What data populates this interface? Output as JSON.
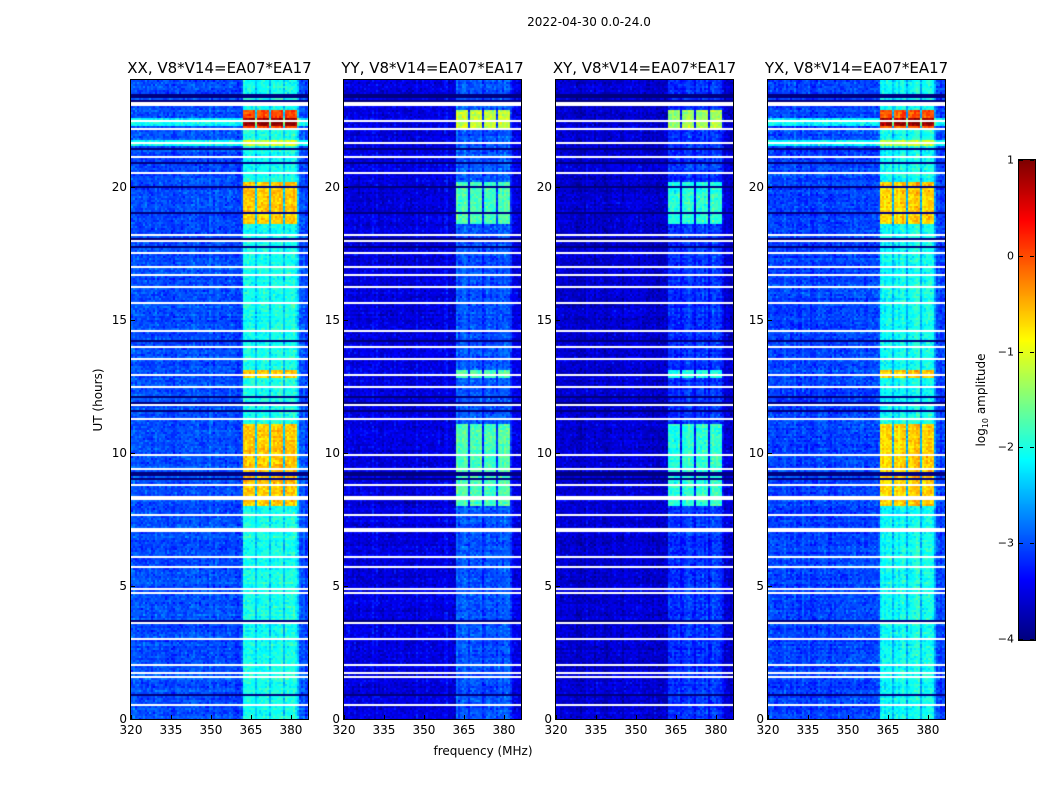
{
  "chart_data": {
    "type": "heatmap",
    "title": "2022-04-30 0.0-24.0",
    "xlabel": "frequency (MHz)",
    "ylabel": "UT (hours)",
    "xlim": [
      320,
      386.4
    ],
    "ylim": [
      0,
      24
    ],
    "xticks": [
      "320",
      "335",
      "350",
      "365",
      "380"
    ],
    "xtick_values": [
      320,
      335,
      350,
      365,
      380
    ],
    "yticks": [
      "0",
      "5",
      "10",
      "15",
      "20"
    ],
    "ytick_values": [
      0,
      5,
      10,
      15,
      20
    ],
    "panels": [
      {
        "title": "XX, V8*V14=EA07*EA17",
        "background_log_amp": -3.0,
        "band_boost": 0.9
      },
      {
        "title": "YY, V8*V14=EA07*EA17",
        "background_log_amp": -3.5,
        "band_boost": 0.5
      },
      {
        "title": "XY, V8*V14=EA07*EA17",
        "background_log_amp": -3.6,
        "band_boost": 0.45
      },
      {
        "title": "YX, V8*V14=EA07*EA17",
        "background_log_amp": -3.05,
        "band_boost": 0.9
      }
    ],
    "rfi_subbands_mhz": [
      [
        362,
        366.5
      ],
      [
        367.2,
        372
      ],
      [
        372.5,
        377
      ],
      [
        377.7,
        382
      ]
    ],
    "bright_periods_ut": [
      [
        8.0,
        11.1
      ],
      [
        12.8,
        13.1
      ],
      [
        18.6,
        20.2
      ],
      [
        22.2,
        22.9
      ]
    ],
    "flagged_rows_ut": [
      0.5,
      1.6,
      1.75,
      2.0,
      3.0,
      3.6,
      4.7,
      4.9,
      5.7,
      6.1,
      7.1,
      7.65,
      8.3,
      8.8,
      9.4,
      9.9,
      11.3,
      11.8,
      12.5,
      12.9,
      13.55,
      14.0,
      14.6,
      15.65,
      16.25,
      16.7,
      17.0,
      17.5,
      17.95,
      18.2,
      20.5,
      21.1,
      21.6,
      22.15,
      22.45,
      23.1
    ],
    "dark_rows_ut": [
      0.9,
      3.7,
      9.0,
      9.2,
      11.6,
      11.9,
      12.1,
      14.2,
      17.7,
      18.0,
      19.0,
      20.0,
      20.9,
      21.4,
      23.2,
      23.4
    ],
    "colorbar": {
      "label": "log10 amplitude",
      "label_main": "log",
      "label_sub": "10",
      "label_rest": " amplitude",
      "range": [
        -4,
        1
      ],
      "ticks": [
        "1",
        "0",
        "−1",
        "−2",
        "−3",
        "−4"
      ],
      "tick_values": [
        1,
        0,
        -1,
        -2,
        -3,
        -4
      ],
      "colormap": "jet"
    }
  }
}
